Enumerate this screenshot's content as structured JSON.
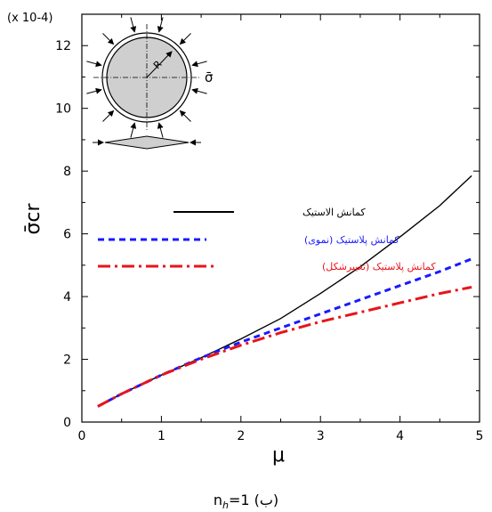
{
  "chart_data": {
    "type": "line",
    "xlabel": "μ",
    "ylabel": "σ̄cr",
    "y_scale_note": "(x 10-4)",
    "xlim": [
      0,
      5
    ],
    "ylim": [
      0,
      13
    ],
    "x_ticks": [
      "0",
      "1",
      "2",
      "3",
      "4",
      "5"
    ],
    "y_ticks": [
      "0",
      "2",
      "4",
      "6",
      "8",
      "10",
      "12"
    ],
    "legend_position": "middle-left",
    "series": [
      {
        "name": "کمانش الاستیک",
        "color": "#000000",
        "style": "solid",
        "x": [
          0.2,
          0.5,
          1.0,
          1.5,
          2.0,
          2.5,
          3.0,
          3.5,
          4.0,
          4.5,
          4.9
        ],
        "y": [
          0.5,
          0.9,
          1.5,
          2.05,
          2.65,
          3.3,
          4.1,
          4.95,
          5.9,
          6.9,
          7.85
        ]
      },
      {
        "name": "کمانش پلاستیک (نموی)",
        "color": "#1a1aff",
        "style": "dashed",
        "x": [
          0.2,
          0.5,
          1.0,
          1.5,
          2.0,
          2.5,
          3.0,
          3.5,
          4.0,
          4.5,
          4.9
        ],
        "y": [
          0.5,
          0.9,
          1.5,
          2.05,
          2.55,
          3.0,
          3.45,
          3.9,
          4.35,
          4.8,
          5.2
        ]
      },
      {
        "name": "کمانش پلاستیک (تغییرشکل)",
        "color": "#e8141b",
        "style": "dash-dot",
        "x": [
          0.2,
          0.5,
          1.0,
          1.5,
          2.0,
          2.5,
          3.0,
          3.5,
          4.0,
          4.5,
          4.9
        ],
        "y": [
          0.5,
          0.9,
          1.5,
          2.0,
          2.45,
          2.85,
          3.2,
          3.5,
          3.8,
          4.1,
          4.3
        ]
      }
    ]
  },
  "inset": {
    "radius_label": "R",
    "load_label": "σ̄"
  },
  "caption": {
    "prefix": "n",
    "sub": "h",
    "rest": "=1 (ب)"
  }
}
